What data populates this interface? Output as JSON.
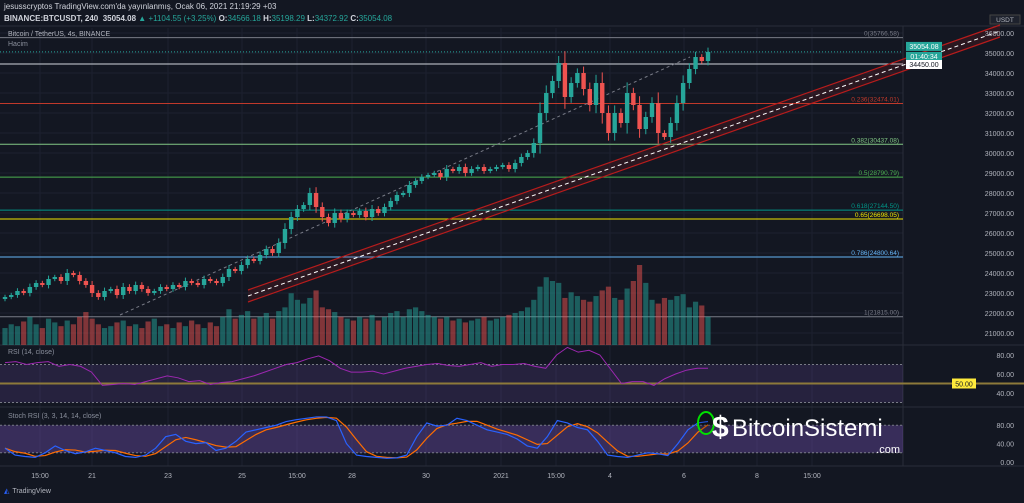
{
  "header": {
    "line1": "jesusscryptos TradingView.com'da yayınlanmış, Ocak 06, 2021 21:19:29 +03",
    "symbol": "BINANCE:BTCUSDT, 240",
    "last": "35054.08",
    "change": "▲ +1104.55 (+3.25%)",
    "o_label": "O:",
    "o": "34566.18",
    "h_label": "H:",
    "h": "35198.29",
    "l_label": "L:",
    "l": "34372.92",
    "c_label": "C:",
    "c": "35054.08"
  },
  "legend": {
    "title": "Bitcoin / TetherUS, 4s, BINANCE",
    "volume": "Hacim",
    "rsi": "RSI (14, close)",
    "stoch": "Stoch RSI (3, 3, 14, 14, close)"
  },
  "price_axis": {
    "currency": "USDT",
    "last_price": "35054.08",
    "countdown": "01:40:34",
    "marker": "34450.00",
    "ticks": [
      "36000.00",
      "35000.00",
      "34000.00",
      "33000.00",
      "32000.00",
      "31000.00",
      "30000.00",
      "29000.00",
      "28000.00",
      "27000.00",
      "26000.00",
      "25000.00",
      "24000.00",
      "23000.00",
      "22000.00",
      "21000.00"
    ],
    "rsi_ticks": [
      "80.00",
      "60.00",
      "40.00"
    ],
    "rsi_marker": "50.00",
    "stoch_ticks": [
      "80.00",
      "40.00",
      "0.00"
    ]
  },
  "fib": [
    {
      "label": "0(35766.58)",
      "price": 35766.58,
      "color": "#787b86"
    },
    {
      "label": "0.236(32474.01)",
      "price": 32474.01,
      "color": "#c0392b"
    },
    {
      "label": "0.382(30437.08)",
      "price": 30437.08,
      "color": "#81c784"
    },
    {
      "label": "0.5(28790.79)",
      "price": 28790.79,
      "color": "#4caf50"
    },
    {
      "label": "0.618(27144.50)",
      "price": 27144.5,
      "color": "#009688"
    },
    {
      "label": "0.65(26698.05)",
      "price": 26698.05,
      "color": "#f2e600"
    },
    {
      "label": "0.786(24800.64)",
      "price": 24800.64,
      "color": "#64b5f6"
    },
    {
      "label": "1(21815.00)",
      "price": 21815,
      "color": "#787b86"
    }
  ],
  "time_axis": [
    "15:00",
    "21",
    "23",
    "25",
    "15:00",
    "28",
    "30",
    "2021",
    "15:00",
    "4",
    "6",
    "8",
    "15:00"
  ],
  "footer": {
    "brand": "TradingView"
  },
  "watermark": {
    "text": "BitcoinSistemi",
    "domain": ".com"
  },
  "colors": {
    "up": "#26a69a",
    "down": "#ef5350",
    "bg": "#131722",
    "rsi": "#9c27b0",
    "stoch_k": "#2962ff",
    "stoch_d": "#ff6d00"
  },
  "chart_data": {
    "type": "candlestick",
    "ylim": [
      20500,
      36800
    ],
    "closes": [
      22800,
      22900,
      23100,
      23000,
      23300,
      23500,
      23400,
      23700,
      23800,
      23600,
      24000,
      23900,
      23600,
      23400,
      23000,
      22800,
      23100,
      23200,
      22900,
      23300,
      23100,
      23400,
      23200,
      23000,
      23100,
      23300,
      23200,
      23400,
      23300,
      23600,
      23500,
      23400,
      23700,
      23600,
      23500,
      23800,
      24200,
      24100,
      24400,
      24700,
      24600,
      24900,
      25200,
      25000,
      25500,
      26200,
      26800,
      27200,
      27400,
      28000,
      27300,
      26800,
      26500,
      27000,
      26700,
      27000,
      26900,
      27100,
      26800,
      27200,
      27000,
      27300,
      27600,
      27900,
      28000,
      28400,
      28600,
      28800,
      28900,
      29000,
      28800,
      29200,
      29100,
      29300,
      29000,
      29200,
      29300,
      29100,
      29200,
      29300,
      29400,
      29200,
      29500,
      29800,
      30000,
      30500,
      32000,
      33000,
      33600,
      34500,
      32800,
      33500,
      34000,
      33200,
      32400,
      33500,
      32000,
      31000,
      32000,
      31500,
      33000,
      32400,
      31200,
      31800,
      32500,
      31000,
      30800,
      31500,
      32500,
      33500,
      34200,
      34800,
      34600,
      35054
    ],
    "volume": [
      18,
      22,
      20,
      25,
      30,
      22,
      18,
      28,
      24,
      20,
      26,
      22,
      30,
      35,
      28,
      22,
      18,
      20,
      24,
      26,
      20,
      22,
      18,
      25,
      28,
      20,
      22,
      18,
      24,
      20,
      26,
      22,
      18,
      24,
      20,
      30,
      38,
      28,
      32,
      36,
      28,
      30,
      34,
      28,
      36,
      40,
      55,
      48,
      44,
      50,
      58,
      40,
      38,
      35,
      30,
      28,
      26,
      30,
      28,
      32,
      26,
      30,
      34,
      36,
      30,
      38,
      40,
      36,
      32,
      30,
      28,
      30,
      26,
      28,
      24,
      26,
      28,
      30,
      26,
      28,
      30,
      32,
      34,
      36,
      40,
      48,
      62,
      72,
      68,
      66,
      50,
      56,
      52,
      48,
      46,
      52,
      58,
      62,
      50,
      48,
      60,
      68,
      85,
      66,
      48,
      44,
      50,
      48,
      52,
      54,
      40,
      46,
      42,
      30
    ],
    "rsi": [
      72,
      73,
      70,
      72,
      73,
      68,
      70,
      68,
      62,
      48,
      49,
      50,
      49,
      52,
      55,
      58,
      56,
      52,
      53,
      49,
      51,
      52,
      55,
      58,
      62,
      66,
      70,
      72,
      76,
      79,
      74,
      66,
      62,
      62,
      63,
      60,
      63,
      66,
      68,
      70,
      71,
      69,
      68,
      70,
      72,
      68,
      70,
      70,
      71,
      68,
      66,
      80,
      88,
      83,
      85,
      80,
      65,
      50,
      52,
      52,
      48,
      55,
      60,
      64,
      66,
      66
    ],
    "stoch_k": [
      30,
      15,
      12,
      10,
      20,
      35,
      25,
      18,
      22,
      30,
      25,
      20,
      12,
      10,
      15,
      30,
      55,
      60,
      45,
      40,
      42,
      25,
      30,
      45,
      65,
      70,
      75,
      80,
      88,
      92,
      95,
      98,
      98,
      90,
      40,
      15,
      12,
      10,
      8,
      9,
      15,
      55,
      85,
      78,
      80,
      95,
      90,
      80,
      70,
      65,
      60,
      50,
      35,
      30,
      55,
      90,
      85,
      75,
      70,
      45,
      15,
      12,
      10,
      15,
      20,
      18,
      14,
      40,
      70,
      85,
      88
    ]
  }
}
